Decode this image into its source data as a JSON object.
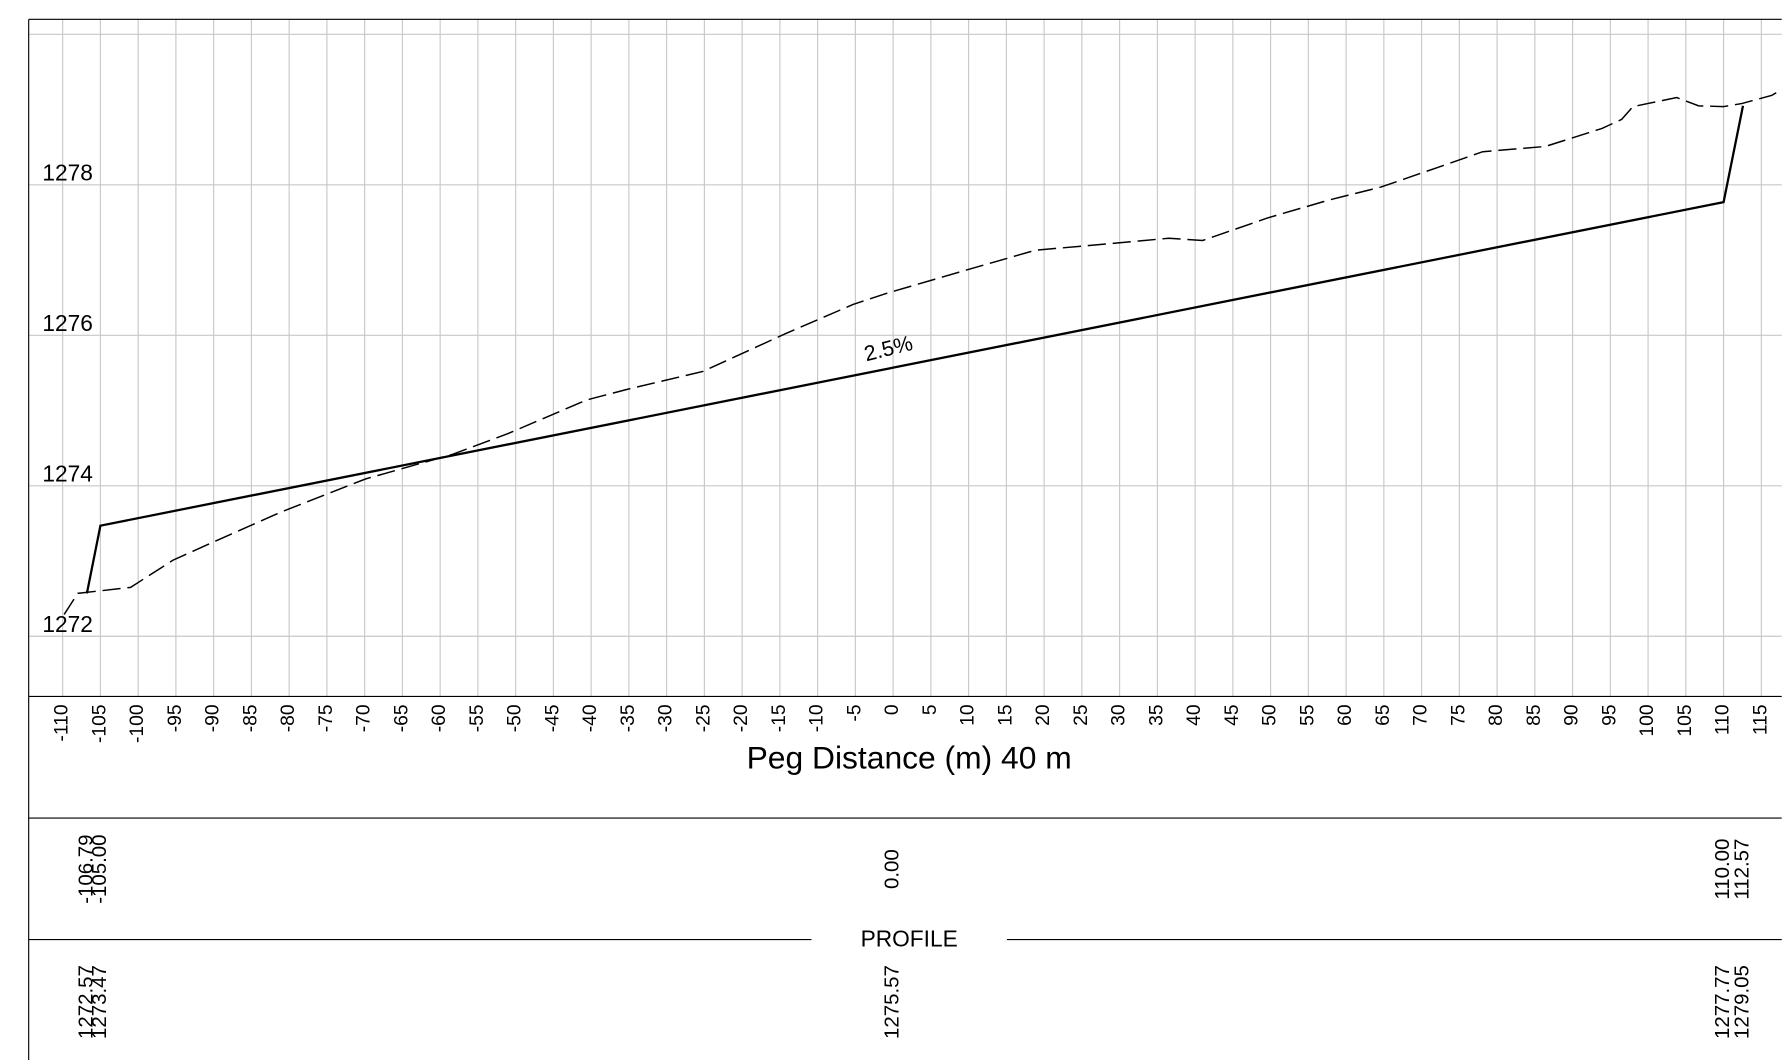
{
  "chart_data": {
    "type": "line",
    "x_label": "Peg Distance (m) 40 m",
    "table_title": "PROFILE",
    "annotation": "2.5%",
    "xlim": [
      -114.5,
      117.7
    ],
    "ylim": [
      1271.2,
      1280.2
    ],
    "xticks": [
      -110,
      -105,
      -100,
      -95,
      -90,
      -85,
      -80,
      -75,
      -70,
      -65,
      -60,
      -55,
      -50,
      -45,
      -40,
      -35,
      -30,
      -25,
      -20,
      -15,
      -10,
      -5,
      0,
      5,
      10,
      15,
      20,
      25,
      30,
      35,
      40,
      45,
      50,
      55,
      60,
      65,
      70,
      75,
      80,
      85,
      90,
      95,
      100,
      105,
      110,
      115
    ],
    "yticks": [
      1272,
      1274,
      1276,
      1278
    ],
    "ygrid": [
      1272,
      1274,
      1276,
      1278,
      1280
    ],
    "series": [
      {
        "style": "dashed",
        "color": "#000000",
        "x": [
          -109.8,
          -108.0,
          -101.0,
          -95.4,
          -90.1,
          -81.1,
          -69.9,
          -58.3,
          -51.1,
          -40.6,
          -35.3,
          -25.2,
          -14.3,
          -5.3,
          -0.8,
          9.8,
          18.8,
          30.0,
          36.5,
          41.0,
          49.6,
          57.8,
          64.6,
          72.1,
          78.1,
          86.4,
          93.9,
          96.5,
          98.0,
          103.8,
          106.7,
          110.0,
          112.4,
          116.4,
          117.6
        ],
        "values": [
          1272.29,
          1272.57,
          1272.65,
          1273.01,
          1273.25,
          1273.65,
          1274.09,
          1274.42,
          1274.69,
          1275.14,
          1275.28,
          1275.52,
          1276.02,
          1276.41,
          1276.56,
          1276.87,
          1277.13,
          1277.23,
          1277.29,
          1277.26,
          1277.56,
          1277.8,
          1277.97,
          1278.23,
          1278.44,
          1278.51,
          1278.75,
          1278.87,
          1279.04,
          1279.16,
          1279.05,
          1279.04,
          1279.08,
          1279.19,
          1279.26
        ]
      },
      {
        "style": "solid",
        "color": "#000000",
        "x": [
          -106.79,
          -105,
          0,
          110,
          112.57
        ],
        "x_labels": [
          "-106.79",
          "-105.00",
          "0.00",
          "110.00",
          "112.57"
        ],
        "values": [
          1272.57,
          1273.47,
          1275.57,
          1277.77,
          1279.05
        ]
      }
    ]
  }
}
